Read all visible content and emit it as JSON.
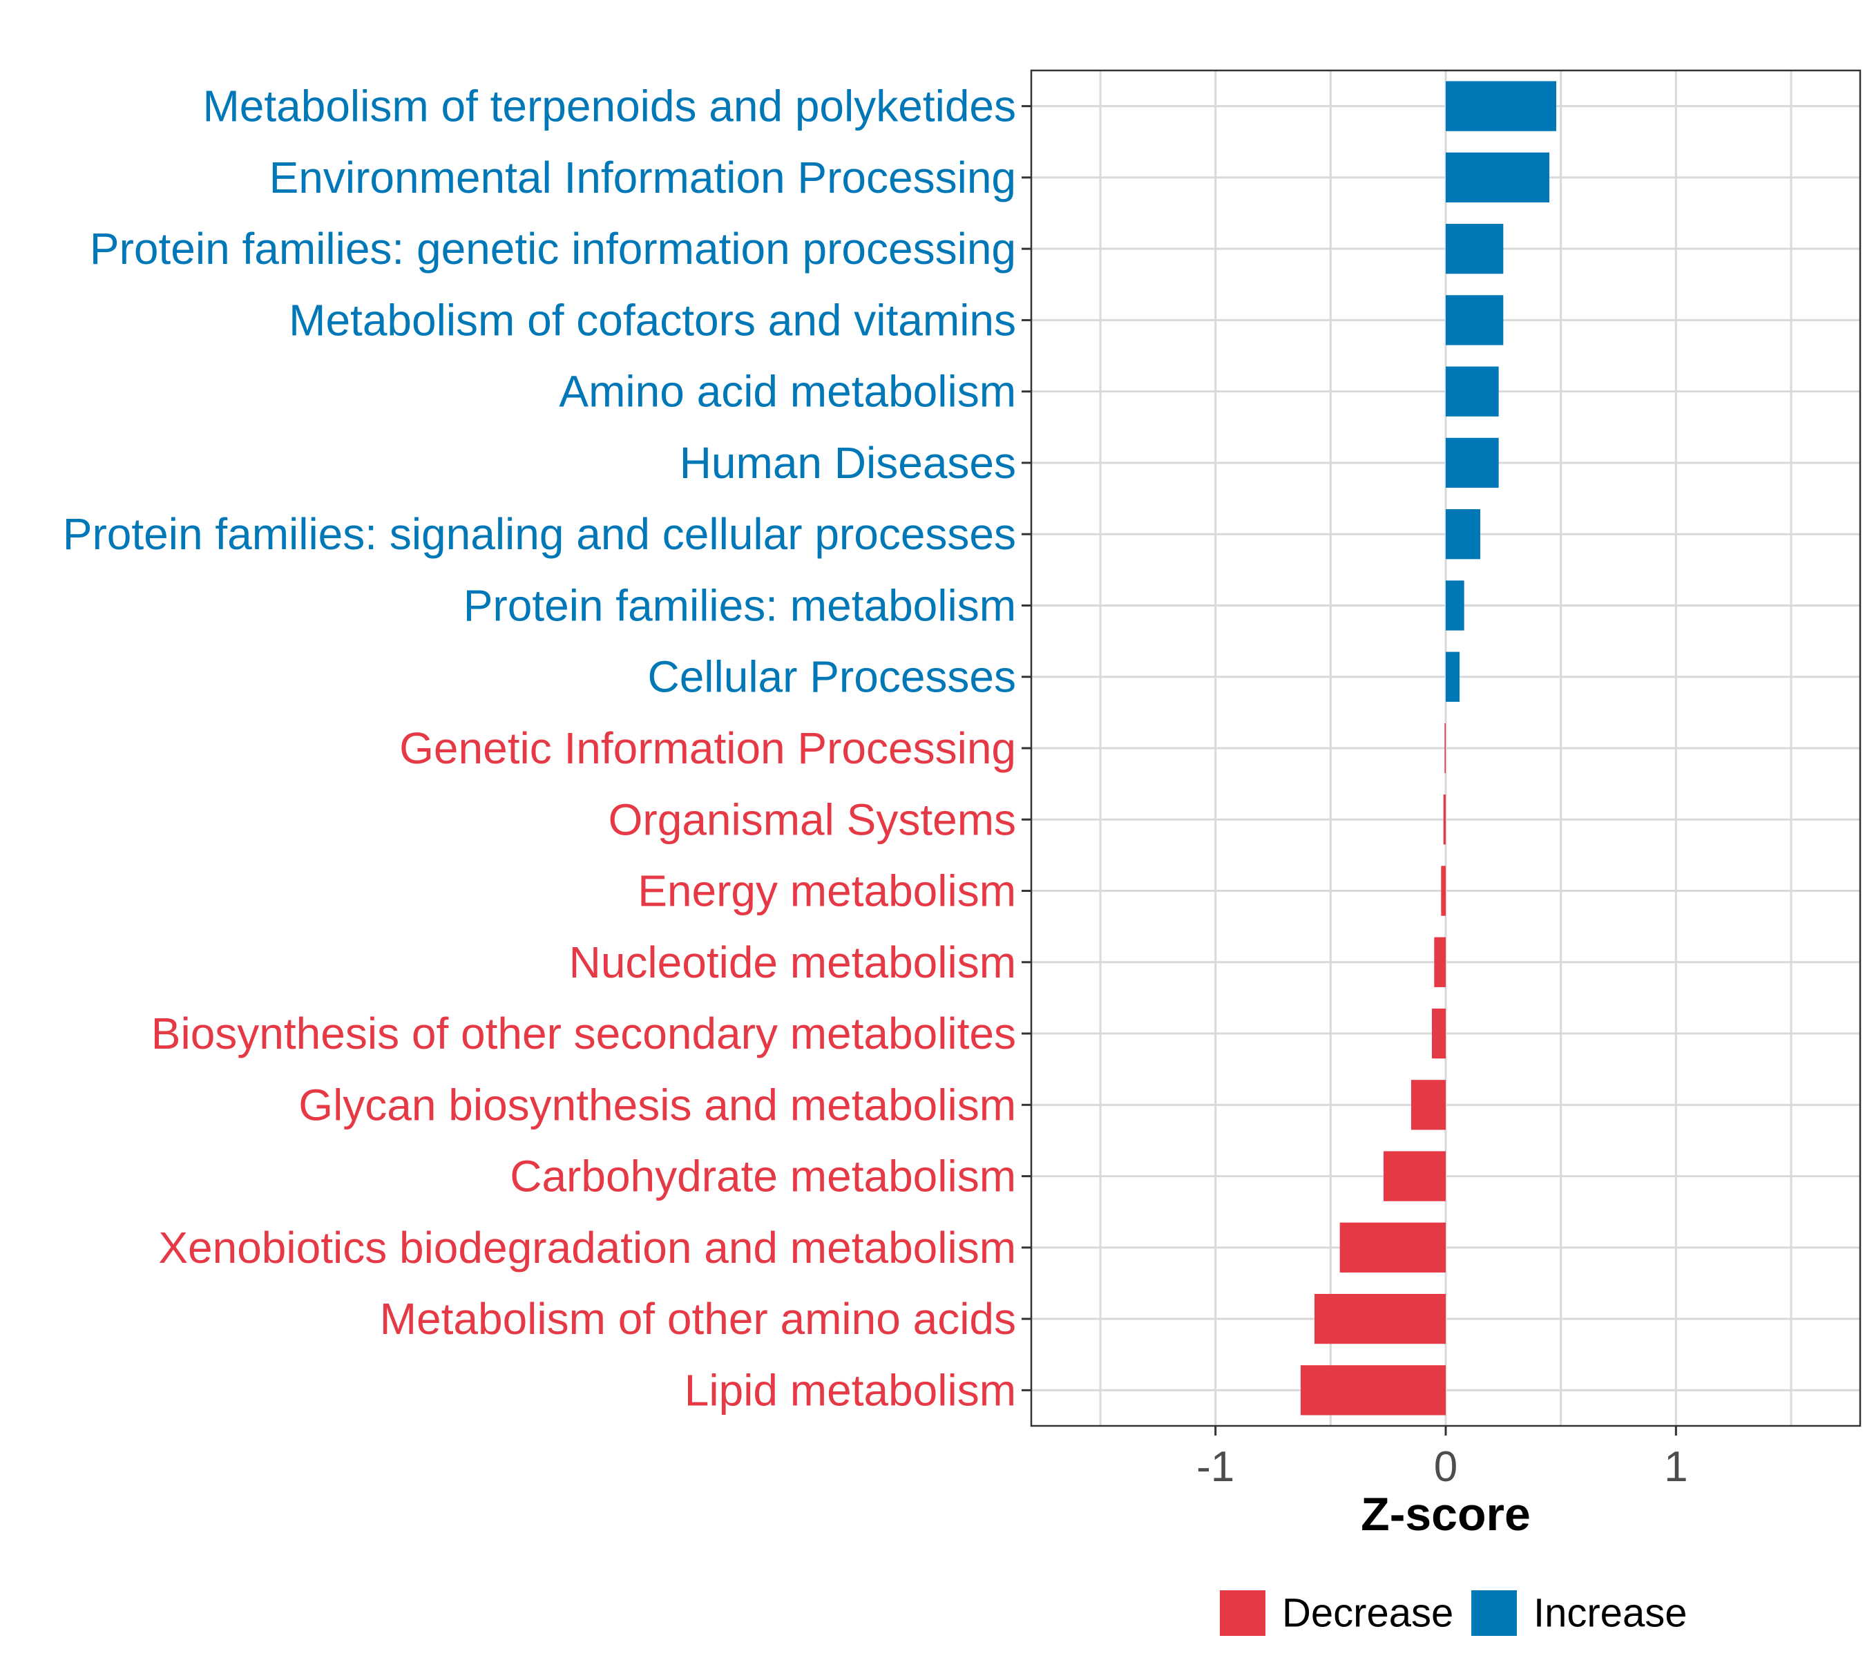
{
  "chart_data": {
    "type": "bar",
    "orientation": "horizontal",
    "categories": [
      "Metabolism of terpenoids and polyketides",
      "Environmental Information Processing",
      "Protein families: genetic information processing",
      "Metabolism of cofactors and vitamins",
      "Amino acid metabolism",
      "Human Diseases",
      "Protein families: signaling and cellular processes",
      "Protein families: metabolism",
      "Cellular Processes",
      "Genetic Information Processing",
      "Organismal Systems",
      "Energy metabolism",
      "Nucleotide metabolism",
      "Biosynthesis of other secondary metabolites",
      "Glycan biosynthesis and metabolism",
      "Carbohydrate metabolism",
      "Xenobiotics biodegradation and metabolism",
      "Metabolism of other amino acids",
      "Lipid metabolism"
    ],
    "values": [
      0.48,
      0.45,
      0.25,
      0.25,
      0.23,
      0.23,
      0.15,
      0.08,
      0.06,
      -0.005,
      -0.01,
      -0.02,
      -0.05,
      -0.06,
      -0.15,
      -0.27,
      -0.46,
      -0.57,
      -0.63
    ],
    "groups": [
      "Increase",
      "Increase",
      "Increase",
      "Increase",
      "Increase",
      "Increase",
      "Increase",
      "Increase",
      "Increase",
      "Decrease",
      "Decrease",
      "Decrease",
      "Decrease",
      "Decrease",
      "Decrease",
      "Decrease",
      "Decrease",
      "Decrease",
      "Decrease"
    ],
    "xlabel": "Z-score",
    "ylabel": "",
    "xlim": [
      -1.8,
      1.8
    ],
    "xticks": [
      -1,
      0,
      1
    ],
    "xtick_labels": [
      "-1",
      "0",
      "1"
    ],
    "grid": true,
    "legend": {
      "placement": "bottom",
      "entries": [
        {
          "label": "Decrease",
          "color": "#E63946"
        },
        {
          "label": "Increase",
          "color": "#0077B6"
        }
      ]
    },
    "colors": {
      "Decrease": "#E63946",
      "Increase": "#0077B6"
    }
  }
}
